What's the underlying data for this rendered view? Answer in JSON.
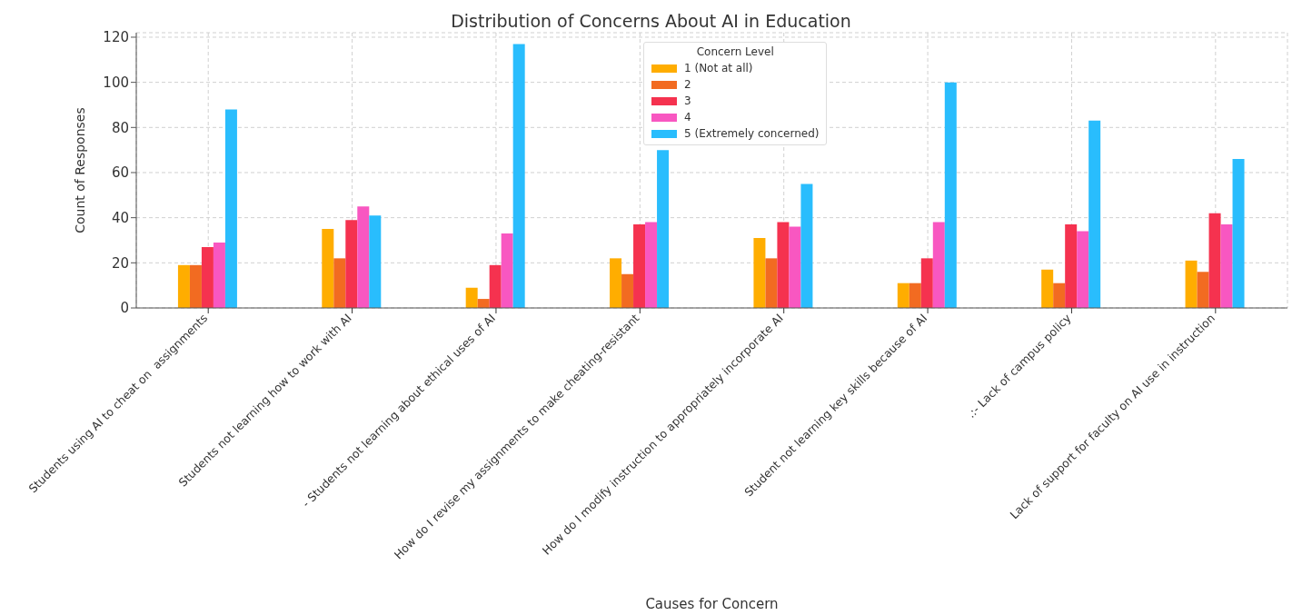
{
  "chart_data": {
    "type": "bar",
    "title": "Distribution of Concerns About AI in Education",
    "xlabel": "Causes for Concern",
    "ylabel": "Count of Responses",
    "legend_title": "Concern Level",
    "categories": [
      "Students using AI to cheat on  assignments",
      "Students not learning how to work with AI",
      "- Students not learning about ethical uses of AI",
      "How do I revise my assignments to make cheating-resistant",
      "How do I modify instruction to appropriately incorporate AI",
      "Student not learning key skills because of AI",
      ".:- Lack of campus policy",
      "Lack of support for faculty on AI use in instruction"
    ],
    "series": [
      {
        "name": "1 (Not at all)",
        "color": "#ffad00",
        "values": [
          19,
          35,
          9,
          22,
          31,
          11,
          17,
          21
        ]
      },
      {
        "name": "2",
        "color": "#f26b21",
        "values": [
          19,
          22,
          4,
          15,
          22,
          11,
          11,
          16
        ]
      },
      {
        "name": "3",
        "color": "#f5324f",
        "values": [
          27,
          39,
          19,
          37,
          38,
          22,
          37,
          42
        ]
      },
      {
        "name": "4",
        "color": "#f857c1",
        "values": [
          29,
          45,
          33,
          38,
          36,
          38,
          34,
          37
        ]
      },
      {
        "name": "5 (Extremely concerned)",
        "color": "#29bdfd",
        "values": [
          88,
          41,
          117,
          70,
          55,
          100,
          83,
          66
        ]
      }
    ],
    "ylim": [
      0,
      122
    ],
    "yticks": [
      0,
      20,
      40,
      60,
      80,
      100,
      120
    ],
    "grid": true,
    "legend": "top"
  }
}
